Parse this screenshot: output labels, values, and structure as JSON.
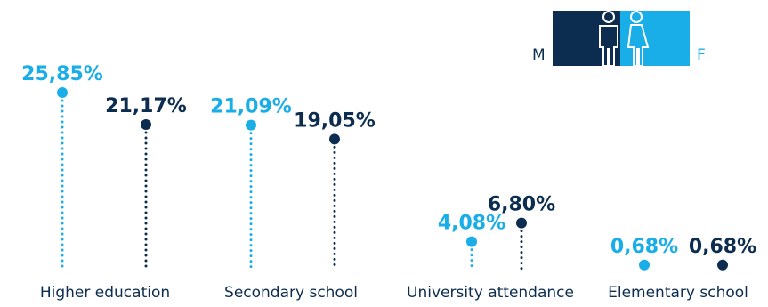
{
  "chart_data": {
    "type": "lollipop",
    "categories": [
      "Higher education",
      "Secondary school",
      "University attendance",
      "Elementary school"
    ],
    "series": [
      {
        "name": "F",
        "color": "#1aaee8",
        "values": [
          25.85,
          21.09,
          4.08,
          0.68
        ]
      },
      {
        "name": "M",
        "color": "#0c2d4f",
        "values": [
          21.17,
          19.05,
          6.8,
          0.68
        ]
      }
    ],
    "value_labels": {
      "F": [
        "25,85%",
        "21,09%",
        "4,08%",
        "0,68%"
      ],
      "M": [
        "21,17%",
        "19,05%",
        "6,80%",
        "0,68%"
      ]
    },
    "legend": {
      "male_label": "M",
      "female_label": "F",
      "male_color": "#0c2d4f",
      "female_color": "#1aaee8",
      "icons": [
        "man-icon",
        "woman-icon"
      ],
      "position": "top-right"
    },
    "ylim": [
      0,
      26
    ],
    "grid": false
  }
}
